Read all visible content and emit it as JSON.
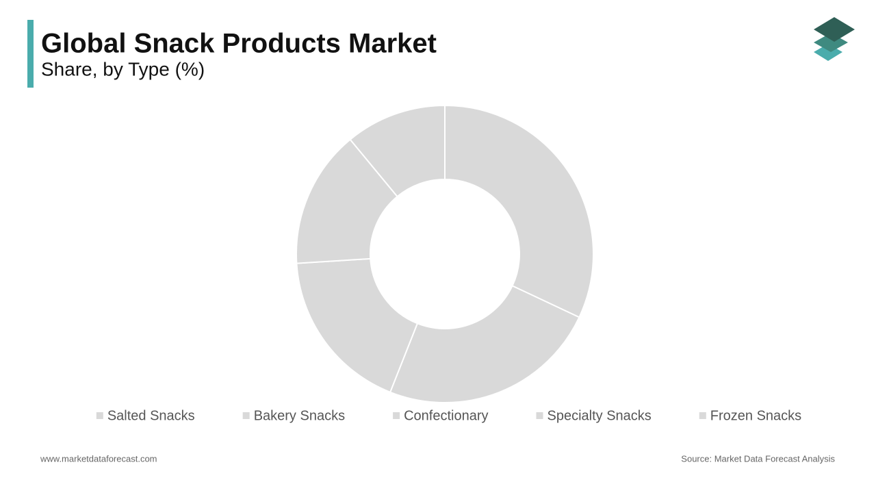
{
  "chart_data": {
    "type": "donut",
    "title": "Global Snack Products Market",
    "subtitle": "Share, by Type (%)",
    "categories": [
      "Salted Snacks",
      "Bakery Snacks",
      "Confectionary",
      "Specialty Snacks",
      "Frozen Snacks"
    ],
    "values": [
      32,
      24,
      18,
      15,
      11
    ],
    "color": "#d9d9d9",
    "legend": "bottom"
  },
  "footer": {
    "website": "www.marketdataforecast.com",
    "source": "Source: Market Data Forecast Analysis"
  }
}
